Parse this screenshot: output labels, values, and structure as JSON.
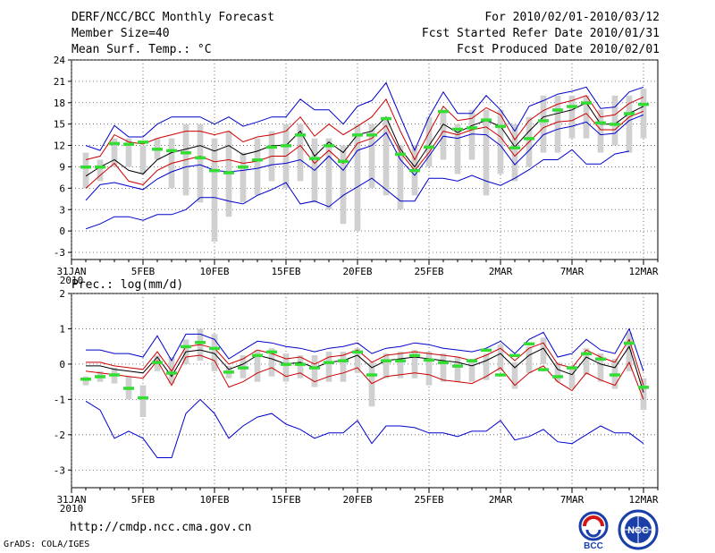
{
  "header": {
    "title": "DERF/NCC/BCC Monthly Forecast",
    "member_size": "Member Size=40",
    "variable": "Mean Surf. Temp.: °C",
    "period": "For 2010/02/01-2010/03/12",
    "fcst_started": "Fcst Started Refer Date 2010/01/31",
    "fcst_produced": "Fcst Produced Date 2010/02/01"
  },
  "footer": {
    "url": "http://cmdp.ncc.cma.gov.cn",
    "credit": "GrADS: COLA/IGES",
    "logo_left": "BCC",
    "logo_right": "NCC"
  },
  "colors": {
    "grid": "#555555",
    "box": "#d0d0d0",
    "obs": "#33dd33",
    "mean": "#000000",
    "spread": "#cc0000",
    "extreme": "#0000cc"
  },
  "chart_data": [
    {
      "type": "line",
      "title": "Mean Surf. Temp.: °C",
      "xlabel": "",
      "ylabel": "°C",
      "ylim": [
        -4,
        24
      ],
      "yticks": [
        -3,
        0,
        3,
        6,
        9,
        12,
        15,
        18,
        21,
        24
      ],
      "xticks": [
        {
          "day": 0,
          "label": "31JAN",
          "sub": "2010"
        },
        {
          "day": 5,
          "label": "5FEB"
        },
        {
          "day": 10,
          "label": "10FEB"
        },
        {
          "day": 15,
          "label": "15FEB"
        },
        {
          "day": 20,
          "label": "20FEB"
        },
        {
          "day": 25,
          "label": "25FEB"
        },
        {
          "day": 30,
          "label": "2MAR"
        },
        {
          "day": 35,
          "label": "7MAR"
        },
        {
          "day": 40,
          "label": "12MAR"
        }
      ],
      "x": [
        1,
        2,
        3,
        4,
        5,
        6,
        7,
        8,
        9,
        10,
        11,
        12,
        13,
        14,
        15,
        16,
        17,
        18,
        19,
        20,
        21,
        22,
        23,
        24,
        25,
        26,
        27,
        28,
        29,
        30,
        31,
        32,
        33,
        34,
        35,
        36,
        37,
        38,
        39,
        40
      ],
      "series": [
        {
          "name": "ensemble max",
          "role": "extreme",
          "values": [
            12,
            11.3,
            14.8,
            13.2,
            13.2,
            15,
            16,
            16,
            16,
            15,
            16,
            14.7,
            15.3,
            16,
            16,
            18.5,
            17,
            17,
            15,
            17.5,
            18.3,
            20.8,
            16,
            11.3,
            16,
            19.5,
            16.5,
            16.5,
            19,
            17,
            14,
            17.5,
            18.3,
            19.2,
            19.6,
            20.2,
            17.2,
            17.4,
            19.5,
            20.2
          ]
        },
        {
          "name": "upper spread",
          "role": "spread",
          "values": [
            10,
            10.5,
            13.5,
            12.5,
            12.2,
            13,
            13.5,
            14,
            14,
            13.5,
            14,
            12.5,
            13.2,
            13.5,
            14,
            16,
            13.3,
            15,
            13.5,
            14.7,
            16,
            18.5,
            14,
            10,
            13.8,
            17.5,
            15.5,
            15.8,
            17.3,
            16.3,
            12.8,
            15.5,
            16.9,
            17.8,
            18.3,
            19,
            16,
            16.3,
            17.9,
            18.8
          ]
        },
        {
          "name": "ensemble mean",
          "role": "mean",
          "values": [
            7.7,
            9,
            10,
            8.5,
            8,
            10,
            11,
            11.5,
            12,
            11.2,
            12,
            10.7,
            11.2,
            12,
            12,
            14,
            10.5,
            12.5,
            11,
            13.5,
            14,
            16,
            11.5,
            9,
            12,
            15,
            13.8,
            14.8,
            15.5,
            14.7,
            11.8,
            14,
            16,
            16.5,
            17,
            18,
            15,
            15,
            16.5,
            17.5
          ]
        },
        {
          "name": "lower spread",
          "role": "spread",
          "values": [
            6,
            7.8,
            9.5,
            7,
            6.5,
            8.5,
            9.5,
            10,
            10.5,
            9.7,
            10,
            9.5,
            9.8,
            10.5,
            10.5,
            12,
            9.5,
            11.3,
            9.5,
            12.3,
            13,
            14.8,
            11,
            8.5,
            11,
            14,
            13.5,
            14.2,
            14.6,
            13.2,
            10.5,
            12.5,
            14.5,
            15.3,
            15.5,
            16.5,
            14.2,
            14.2,
            16,
            16.8
          ]
        },
        {
          "name": "ensemble min",
          "role": "extreme",
          "values": [
            4.3,
            6.5,
            6.8,
            6.3,
            5.8,
            7.3,
            8.3,
            9,
            9.3,
            8.5,
            8.3,
            8.5,
            8.8,
            9.3,
            9.5,
            10,
            8.5,
            10.5,
            8.5,
            11.3,
            12,
            13.8,
            10,
            7.8,
            10.5,
            13.3,
            13,
            13.6,
            13.5,
            12,
            9.3,
            11.3,
            13.5,
            14.3,
            14.7,
            15.3,
            13.5,
            13.7,
            15.5,
            16.3
          ]
        },
        {
          "name": "absolute min",
          "role": "extreme",
          "values": [
            0.3,
            1,
            2,
            2,
            1.5,
            2.3,
            2.3,
            3,
            4.7,
            4.7,
            4.2,
            3.8,
            5,
            5.8,
            6.8,
            3.8,
            4.2,
            3.4,
            5,
            6.2,
            7.4,
            5.8,
            4.2,
            4.2,
            7.4,
            7.4,
            7,
            7.8,
            7,
            6.4,
            7.4,
            8.6,
            10,
            10,
            11.4,
            9.4,
            9.4,
            10.8,
            11.2,
            null
          ]
        }
      ],
      "boxes": [
        [
          6,
          11
        ],
        [
          7,
          10
        ],
        [
          9,
          13
        ],
        [
          9,
          13
        ],
        [
          8,
          12
        ],
        [
          10,
          13
        ],
        [
          6,
          13
        ],
        [
          5,
          15
        ],
        [
          4,
          15
        ],
        [
          -1.5,
          13
        ],
        [
          2,
          14
        ],
        [
          4,
          11
        ],
        [
          5,
          13
        ],
        [
          7,
          14
        ],
        [
          6,
          15
        ],
        [
          7,
          15
        ],
        [
          4,
          13
        ],
        [
          3,
          13
        ],
        [
          1,
          12
        ],
        [
          0,
          15
        ],
        [
          6,
          15
        ],
        [
          5,
          16
        ],
        [
          3,
          12
        ],
        [
          5,
          12
        ],
        [
          9,
          16
        ],
        [
          10,
          17
        ],
        [
          8,
          15
        ],
        [
          10,
          17
        ],
        [
          5,
          17
        ],
        [
          8,
          17
        ],
        [
          7,
          15
        ],
        [
          9,
          16
        ],
        [
          11,
          19
        ],
        [
          11,
          19
        ],
        [
          13,
          19
        ],
        [
          13,
          19
        ],
        [
          11,
          17
        ],
        [
          12,
          19
        ],
        [
          11,
          19
        ],
        [
          13,
          20
        ]
      ],
      "observations": [
        9,
        9,
        12.3,
        12.2,
        12.5,
        11.5,
        11.3,
        11,
        10.3,
        8.5,
        8.2,
        9,
        10,
        11.8,
        12,
        13.5,
        10.2,
        12,
        9.8,
        13.5,
        13.5,
        15.8,
        10.8,
        8.5,
        11.8,
        16.8,
        14.3,
        14.5,
        15.6,
        14.7,
        11.7,
        13,
        15.5,
        17,
        17.5,
        18,
        15.2,
        15,
        16.5,
        17.8
      ]
    },
    {
      "type": "line",
      "title": "Prec.: log(mm/d)",
      "xlabel": "",
      "ylabel": "log(mm/d)",
      "ylim": [
        -3.5,
        2
      ],
      "yticks": [
        -3,
        -2,
        -1,
        0,
        1,
        2
      ],
      "xticks": [
        {
          "day": 0,
          "label": "31JAN",
          "sub": "2010"
        },
        {
          "day": 5,
          "label": "5FEB"
        },
        {
          "day": 10,
          "label": "10FEB"
        },
        {
          "day": 15,
          "label": "15FEB"
        },
        {
          "day": 20,
          "label": "20FEB"
        },
        {
          "day": 25,
          "label": "25FEB"
        },
        {
          "day": 30,
          "label": "2MAR"
        },
        {
          "day": 35,
          "label": "7MAR"
        },
        {
          "day": 40,
          "label": "12MAR"
        }
      ],
      "x": [
        1,
        2,
        3,
        4,
        5,
        6,
        7,
        8,
        9,
        10,
        11,
        12,
        13,
        14,
        15,
        16,
        17,
        18,
        19,
        20,
        21,
        22,
        23,
        24,
        25,
        26,
        27,
        28,
        29,
        30,
        31,
        32,
        33,
        34,
        35,
        36,
        37,
        38,
        39,
        40
      ],
      "series": [
        {
          "name": "ensemble max",
          "role": "extreme",
          "values": [
            0.4,
            0.4,
            0.3,
            0.3,
            0.2,
            0.8,
            0.1,
            0.85,
            0.85,
            0.7,
            0.15,
            0.4,
            0.65,
            0.6,
            0.5,
            0.45,
            0.35,
            0.45,
            0.5,
            0.6,
            0.3,
            0.45,
            0.5,
            0.6,
            0.55,
            0.45,
            0.4,
            0.35,
            0.45,
            0.65,
            0.3,
            0.7,
            0.9,
            0.2,
            0.3,
            0.7,
            0.4,
            0.3,
            1,
            -0.2
          ]
        },
        {
          "name": "upper spread",
          "role": "spread",
          "values": [
            0.05,
            0.05,
            -0.05,
            -0.1,
            -0.15,
            0.35,
            -0.2,
            0.5,
            0.55,
            0.45,
            0,
            0.15,
            0.4,
            0.3,
            0.15,
            0.2,
            0,
            0.2,
            0.25,
            0.4,
            0.05,
            0.25,
            0.3,
            0.35,
            0.3,
            0.25,
            0.2,
            0.1,
            0.25,
            0.45,
            0.1,
            0.45,
            0.6,
            0,
            -0.1,
            0.4,
            0.2,
            0.05,
            0.7,
            -0.6
          ]
        },
        {
          "name": "ensemble mean",
          "role": "mean",
          "values": [
            -0.05,
            -0.05,
            -0.15,
            -0.2,
            -0.25,
            0.2,
            -0.35,
            0.35,
            0.4,
            0.3,
            -0.15,
            0,
            0.25,
            0.15,
            0,
            0.05,
            -0.1,
            0.05,
            0.1,
            0.25,
            -0.1,
            0.1,
            0.15,
            0.2,
            0.15,
            0.1,
            0.05,
            -0.05,
            0.1,
            0.3,
            -0.1,
            0.25,
            0.45,
            -0.15,
            -0.3,
            0.2,
            0,
            -0.1,
            0.5,
            -0.8
          ]
        },
        {
          "name": "lower spread",
          "role": "spread",
          "values": [
            -0.2,
            -0.25,
            -0.3,
            -0.35,
            -0.4,
            0.1,
            -0.6,
            0.2,
            0.25,
            0.1,
            -0.65,
            -0.5,
            -0.25,
            -0.1,
            -0.35,
            -0.25,
            -0.5,
            -0.35,
            -0.25,
            -0.1,
            -0.55,
            -0.35,
            -0.3,
            -0.25,
            -0.3,
            -0.45,
            -0.5,
            -0.55,
            -0.35,
            -0.1,
            -0.6,
            -0.25,
            -0.05,
            -0.5,
            -0.75,
            -0.25,
            -0.45,
            -0.6,
            0.05,
            -1
          ]
        },
        {
          "name": "absolute min",
          "role": "extreme",
          "values": [
            -1.05,
            -1.3,
            -2.1,
            -1.9,
            -2.1,
            -2.65,
            -2.65,
            -1.4,
            -1,
            -1.4,
            -2.1,
            -1.75,
            -1.5,
            -1.4,
            -1.7,
            -1.85,
            -2.1,
            -1.95,
            -1.95,
            -1.6,
            -2.25,
            -1.75,
            -1.75,
            -1.8,
            -1.95,
            -1.95,
            -2.05,
            -1.9,
            -1.9,
            -1.6,
            -2.15,
            -2.05,
            -1.85,
            -2.2,
            -2.25,
            -2,
            -1.75,
            -1.95,
            -1.95,
            -2.25
          ]
        }
      ],
      "boxes": [
        [
          -0.6,
          -0.35
        ],
        [
          -0.5,
          -0.2
        ],
        [
          -0.55,
          -0.1
        ],
        [
          -1,
          -0.35
        ],
        [
          -1.5,
          -0.6
        ],
        [
          -0.2,
          0.25
        ],
        [
          -0.55,
          0.2
        ],
        [
          0,
          0.7
        ],
        [
          0.1,
          1
        ],
        [
          -0.2,
          0.85
        ],
        [
          -0.4,
          -0.05
        ],
        [
          -0.4,
          0.25
        ],
        [
          -0.5,
          0.4
        ],
        [
          -0.35,
          0.45
        ],
        [
          -0.5,
          0.3
        ],
        [
          -0.4,
          0.25
        ],
        [
          -0.65,
          0.25
        ],
        [
          -0.5,
          0.35
        ],
        [
          -0.5,
          0.35
        ],
        [
          -0.25,
          0.45
        ],
        [
          -1.2,
          0.05
        ],
        [
          -0.4,
          0.3
        ],
        [
          -0.4,
          0.35
        ],
        [
          -0.4,
          0.4
        ],
        [
          -0.6,
          0.35
        ],
        [
          -0.5,
          0.3
        ],
        [
          -0.5,
          0.2
        ],
        [
          -0.5,
          0.15
        ],
        [
          -0.45,
          0.3
        ],
        [
          -0.2,
          0.55
        ],
        [
          -0.7,
          0.05
        ],
        [
          -0.25,
          0.5
        ],
        [
          0,
          0.75
        ],
        [
          -0.5,
          0.05
        ],
        [
          -0.7,
          -0.05
        ],
        [
          -0.3,
          0.45
        ],
        [
          -0.5,
          0.3
        ],
        [
          -0.7,
          0.15
        ],
        [
          -0.2,
          0.9
        ],
        [
          -1.3,
          -0.4
        ]
      ],
      "observations": [
        -0.42,
        -0.35,
        -0.3,
        -0.68,
        -0.95,
        0.05,
        -0.25,
        0.5,
        0.62,
        0.45,
        -0.22,
        -0.1,
        0.25,
        0.35,
        0,
        0,
        -0.1,
        0.05,
        0.1,
        0.35,
        -0.3,
        0.1,
        0.1,
        0.25,
        0.12,
        0.05,
        -0.05,
        0.1,
        0.4,
        -0.3,
        0.25,
        0.58,
        -0.15,
        -0.35,
        -0.1,
        0.3,
        0.15,
        -0.3,
        0.6,
        -0.65
      ]
    }
  ]
}
